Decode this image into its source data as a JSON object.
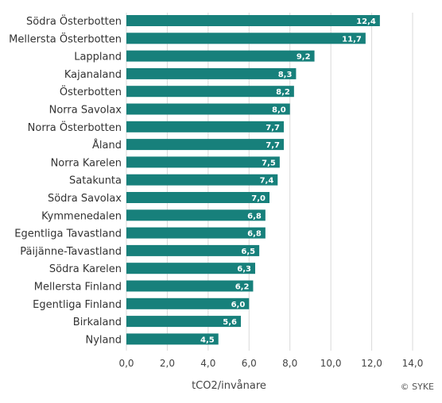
{
  "chart_data": {
    "type": "bar",
    "orientation": "horizontal",
    "categories": [
      "Södra Österbotten",
      "Mellersta Österbotten",
      "Lappland",
      "Kajanaland",
      "Österbotten",
      "Norra Savolax",
      "Norra Österbotten",
      "Åland",
      "Norra Karelen",
      "Satakunta",
      "Södra Savolax",
      "Kymmenedalen",
      "Egentliga Tavastland",
      "Päijänne-Tavastland",
      "Södra Karelen",
      "Mellersta Finland",
      "Egentliga Finland",
      "Birkaland",
      "Nyland"
    ],
    "values": [
      12.4,
      11.7,
      9.2,
      8.3,
      8.2,
      8.0,
      7.7,
      7.7,
      7.5,
      7.4,
      7.0,
      6.8,
      6.8,
      6.5,
      6.3,
      6.2,
      6.0,
      5.6,
      4.5
    ],
    "value_labels": [
      "12,4",
      "11,7",
      "9,2",
      "8,3",
      "8,2",
      "8,0",
      "7,7",
      "7,7",
      "7,5",
      "7,4",
      "7,0",
      "6,8",
      "6,8",
      "6,5",
      "6,3",
      "6,2",
      "6,0",
      "5,6",
      "4,5"
    ],
    "x_ticks": [
      0,
      2,
      4,
      6,
      8,
      10,
      12,
      14
    ],
    "x_tick_labels": [
      "0,0",
      "2,0",
      "4,0",
      "6,0",
      "8,0",
      "10,0",
      "12,0",
      "14,0"
    ],
    "xlim": [
      0,
      14
    ],
    "xlabel": "tCO2/invånare",
    "title": "",
    "grid": true,
    "bar_color": "#17807b",
    "grid_color": "#d9d9d9",
    "credit": "© SYKE"
  }
}
